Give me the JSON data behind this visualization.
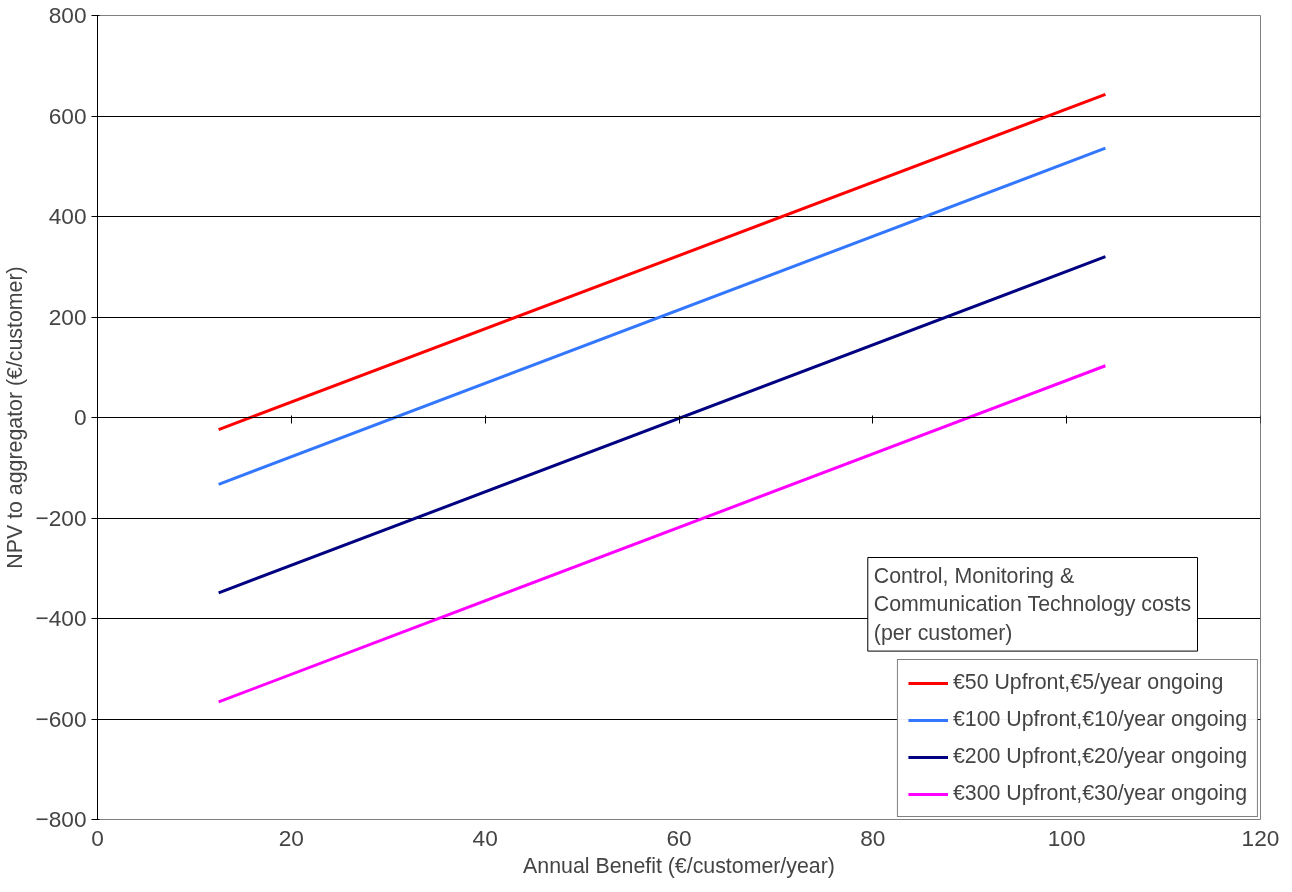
{
  "chart_data": {
    "type": "line",
    "xlabel": "Annual Benefit (€/customer/year)",
    "ylabel": "NPV to aggregator (€/customer)",
    "legend_title": "Control, Monitoring & Communication Technology costs (per customer)",
    "x": [
      12.5,
      104
    ],
    "series": [
      {
        "name": "€50 Upfront,€5/year ongoing",
        "color": "#ff0000",
        "values": [
          -24,
          643
        ]
      },
      {
        "name": "€100 Upfront,€10/year ongoing",
        "color": "#3377ff",
        "values": [
          -133,
          536
        ]
      },
      {
        "name": "€200 Upfront,€20/year ongoing",
        "color": "#000080",
        "values": [
          -349,
          320
        ]
      },
      {
        "name": "€300 Upfront,€30/year ongoing",
        "color": "#ff00ff",
        "values": [
          -566,
          103
        ]
      }
    ],
    "xlim": [
      0,
      120
    ],
    "xticks": [
      0,
      20,
      40,
      60,
      80,
      100,
      120
    ],
    "ylim": [
      -800,
      800
    ],
    "yticks": [
      -800,
      -600,
      -400,
      -200,
      0,
      200,
      400,
      600,
      800
    ],
    "grid": "y",
    "legend": "bottom right",
    "marker": "none",
    "line_style": "solid"
  }
}
